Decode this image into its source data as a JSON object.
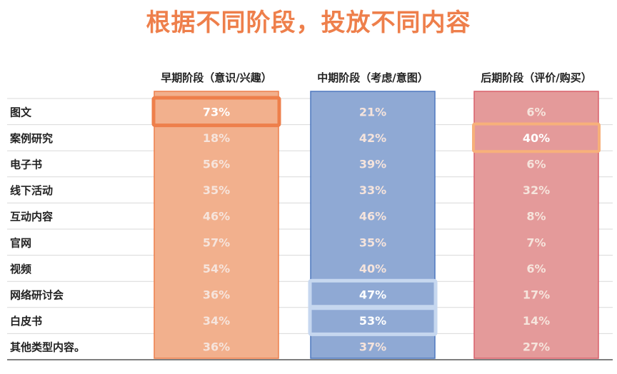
{
  "title": "根据不同阶段，投放不同内容",
  "colors": {
    "title": "#ee7f4b",
    "early_fill": "#f2b08d",
    "early_border": "#ee7f4b",
    "mid_fill": "#8fa9d4",
    "mid_border": "#4f78bf",
    "late_fill": "#e49a9a",
    "late_border": "#d9606a",
    "highlight_orange": "#ee7f4b",
    "highlight_light_orange": "#f7b07a",
    "highlight_light_blue": "#c6d7ef",
    "value_text": "#f6e4dc",
    "value_text_highlight": "#ffffff"
  },
  "chart_data": {
    "type": "table",
    "columns": [
      "早期阶段（意识/兴趣）",
      "中期阶段（考虑/意图）",
      "后期阶段（评价/购买）"
    ],
    "rows": [
      "图文",
      "案例研究",
      "电子书",
      "线下活动",
      "互动内容",
      "官网",
      "视频",
      "网络研讨会",
      "白皮书",
      "其他类型内容。"
    ],
    "values": [
      [
        "73%",
        "21%",
        "6%"
      ],
      [
        "18%",
        "42%",
        "40%"
      ],
      [
        "56%",
        "39%",
        "6%"
      ],
      [
        "35%",
        "33%",
        "32%"
      ],
      [
        "46%",
        "46%",
        "8%"
      ],
      [
        "57%",
        "35%",
        "7%"
      ],
      [
        "54%",
        "40%",
        "6%"
      ],
      [
        "36%",
        "47%",
        "17%"
      ],
      [
        "34%",
        "53%",
        "14%"
      ],
      [
        "36%",
        "37%",
        "27%"
      ]
    ],
    "highlights": [
      {
        "row": 0,
        "col": 0,
        "style": "strong-orange"
      },
      {
        "row": 1,
        "col": 2,
        "style": "light-orange"
      },
      {
        "row": 7,
        "col": 1,
        "style": "light-blue"
      },
      {
        "row": 8,
        "col": 1,
        "style": "light-blue"
      }
    ]
  }
}
